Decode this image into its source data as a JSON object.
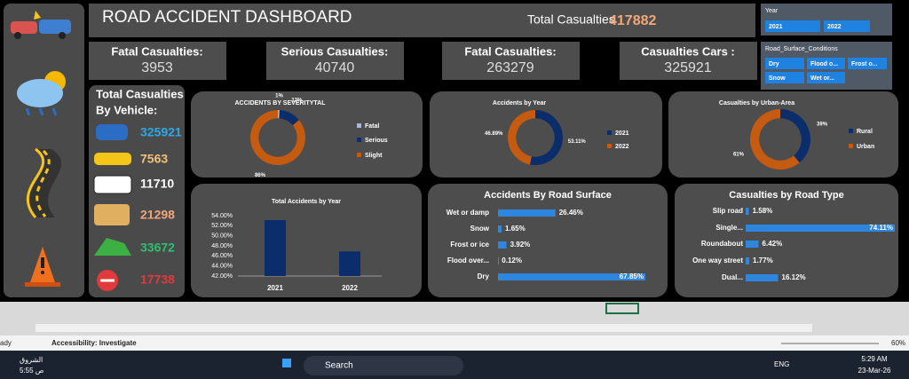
{
  "header": {
    "title": "ROAD ACCIDENT DASHBOARD",
    "total_label": "Total Casualties",
    "total_value": 417882
  },
  "slicers": [
    {
      "title": "Year",
      "items": [
        "2021",
        "2022"
      ]
    },
    {
      "title": "Road_Surface_Conditions",
      "items": [
        "Dry",
        "Flood o...",
        "Frost o...",
        "Snow",
        "Wet or..."
      ]
    }
  ],
  "kpis": [
    {
      "label": "Fatal Casualties:",
      "value": 3953
    },
    {
      "label": "Serious Casualties:",
      "value": 40740
    },
    {
      "label": "Fatal Casualties:",
      "value": 263279
    },
    {
      "label": "Casualties Cars :",
      "value": 325921
    }
  ],
  "vehicles": {
    "title": [
      "Total Casualties",
      "By Vehicle:"
    ],
    "values": [
      325921,
      7563,
      11710,
      21298,
      33672,
      17738
    ],
    "colors": [
      "#2ea8e6",
      "#f3c27a",
      "#ffffff",
      "#f1a77a",
      "#2fbf71",
      "#e23a3a"
    ]
  },
  "chart_data": [
    {
      "type": "donut",
      "title": "ACCIDENTS BY SEVERITYTAL",
      "categories": [
        "Fatal",
        "Serious",
        "Slight"
      ],
      "values": [
        1,
        13,
        86
      ],
      "value_labels": [
        "1%",
        "13%",
        "86%"
      ],
      "colors": [
        "#a9b8d4",
        "#0b2d6b",
        "#c55a11"
      ]
    },
    {
      "type": "donut",
      "title": "Accidents by Year",
      "categories": [
        "2021",
        "2022"
      ],
      "values": [
        53.11,
        46.89
      ],
      "value_labels": [
        "53.11%",
        "46.89%"
      ],
      "colors": [
        "#0b2d6b",
        "#c55a11"
      ]
    },
    {
      "type": "donut",
      "title": "Casualties by Urban-Area",
      "categories": [
        "Rural",
        "Urban"
      ],
      "values": [
        39,
        61
      ],
      "value_labels": [
        "39%",
        "61%"
      ],
      "colors": [
        "#0b2d6b",
        "#c55a11"
      ]
    },
    {
      "type": "bar",
      "title": "Total Accidents by Year",
      "categories": [
        "2021",
        "2022"
      ],
      "values": [
        53.11,
        46.89
      ],
      "color": "#0b2d6b",
      "ylim": [
        42,
        54
      ],
      "yticks": [
        {
          "value": 42,
          "label": "42.00%"
        },
        {
          "value": 44,
          "label": "44.00%"
        },
        {
          "value": 46,
          "label": "46.00%"
        },
        {
          "value": 48,
          "label": "48.00%"
        },
        {
          "value": 50,
          "label": "50.00%"
        },
        {
          "value": 52,
          "label": "52.00%"
        },
        {
          "value": 54,
          "label": "54.00%"
        }
      ]
    },
    {
      "type": "hbar",
      "title": "Accidents By Road Surface",
      "categories": [
        "Wet or damp",
        "Snow",
        "Frost or ice",
        "Flood over...",
        "Dry"
      ],
      "values": [
        26.46,
        1.65,
        3.92,
        0.12,
        67.85
      ],
      "value_labels": [
        "26.46%",
        "1.65%",
        "3.92%",
        "0.12%",
        "67.85%"
      ],
      "color": "#2e86de"
    },
    {
      "type": "hbar",
      "title": "Casualties by Road Type",
      "categories": [
        "Slip road",
        "Single...",
        "Roundabout",
        "One way street",
        "Dual..."
      ],
      "values": [
        1.58,
        74.11,
        6.42,
        1.77,
        16.12
      ],
      "value_labels": [
        "1.58%",
        "74.11%",
        "6.42%",
        "1.77%",
        "16.12%"
      ],
      "color": "#2e86de"
    }
  ],
  "status_bar": {
    "left": "ady",
    "accessibility": "Accessibility: Investigate",
    "zoom": "60%"
  },
  "taskbar": {
    "news": "الشروق",
    "news_time": "5:55 ص",
    "search": "Search",
    "language": "ENG",
    "time": "5:29 AM",
    "date": "23-Mar-26"
  }
}
